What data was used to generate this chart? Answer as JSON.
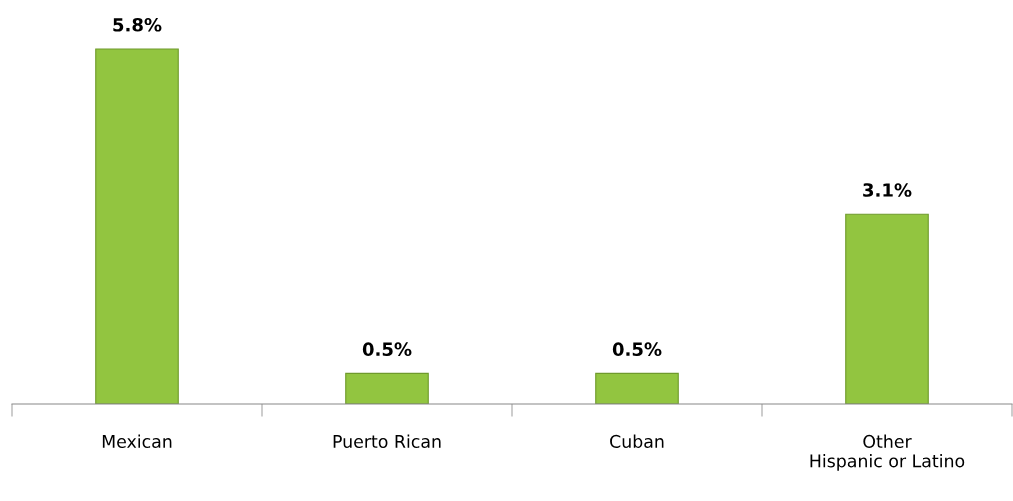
{
  "chart_data": {
    "type": "bar",
    "categories": [
      "Mexican",
      "Puerto Rican",
      "Cuban",
      "Other\nHispanic or Latino"
    ],
    "values": [
      5.8,
      0.5,
      0.5,
      3.1
    ],
    "value_labels": [
      "5.8%",
      "0.5%",
      "0.5%",
      "3.1%"
    ],
    "color": "#92c540",
    "grid": false,
    "legend": false
  }
}
